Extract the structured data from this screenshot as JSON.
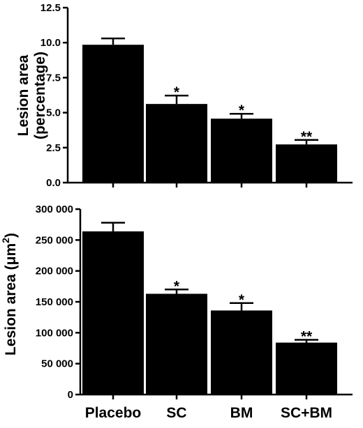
{
  "chart_data": [
    {
      "type": "bar",
      "categories": [
        "Placebo",
        "SC",
        "BM",
        "SC+BM"
      ],
      "values": [
        9.85,
        5.62,
        4.57,
        2.73
      ],
      "errors": [
        0.45,
        0.6,
        0.35,
        0.32
      ],
      "significance": [
        "",
        "*",
        "*",
        "**"
      ],
      "ylabel_lines": [
        "Lesion area",
        "(percentage)"
      ],
      "ylim": [
        0,
        12.5
      ],
      "yticks": [
        0,
        2.5,
        5,
        7.5,
        10,
        12.5
      ],
      "ytick_labels": [
        "0.0",
        "2.5",
        "5.0",
        "7.5",
        "10.0",
        "12.5"
      ],
      "show_category_labels": false,
      "bar_color": "#000000",
      "grid": false
    },
    {
      "type": "bar",
      "categories": [
        "Placebo",
        "SC",
        "BM",
        "SC+BM"
      ],
      "values": [
        264000,
        163000,
        136000,
        84000
      ],
      "errors": [
        14000,
        7000,
        12000,
        4500
      ],
      "significance": [
        "",
        "*",
        "*",
        "**"
      ],
      "ylabel_main": "Lesion area (μm",
      "ylabel_sup": "2",
      "ylabel_end": ")",
      "ylim": [
        0,
        300000
      ],
      "yticks": [
        0,
        50000,
        100000,
        150000,
        200000,
        250000,
        300000
      ],
      "ytick_labels": [
        "0",
        "50 000",
        "100 000",
        "150 000",
        "200 000",
        "250 000",
        "300 000"
      ],
      "show_category_labels": true,
      "bar_color": "#000000",
      "grid": false
    }
  ]
}
